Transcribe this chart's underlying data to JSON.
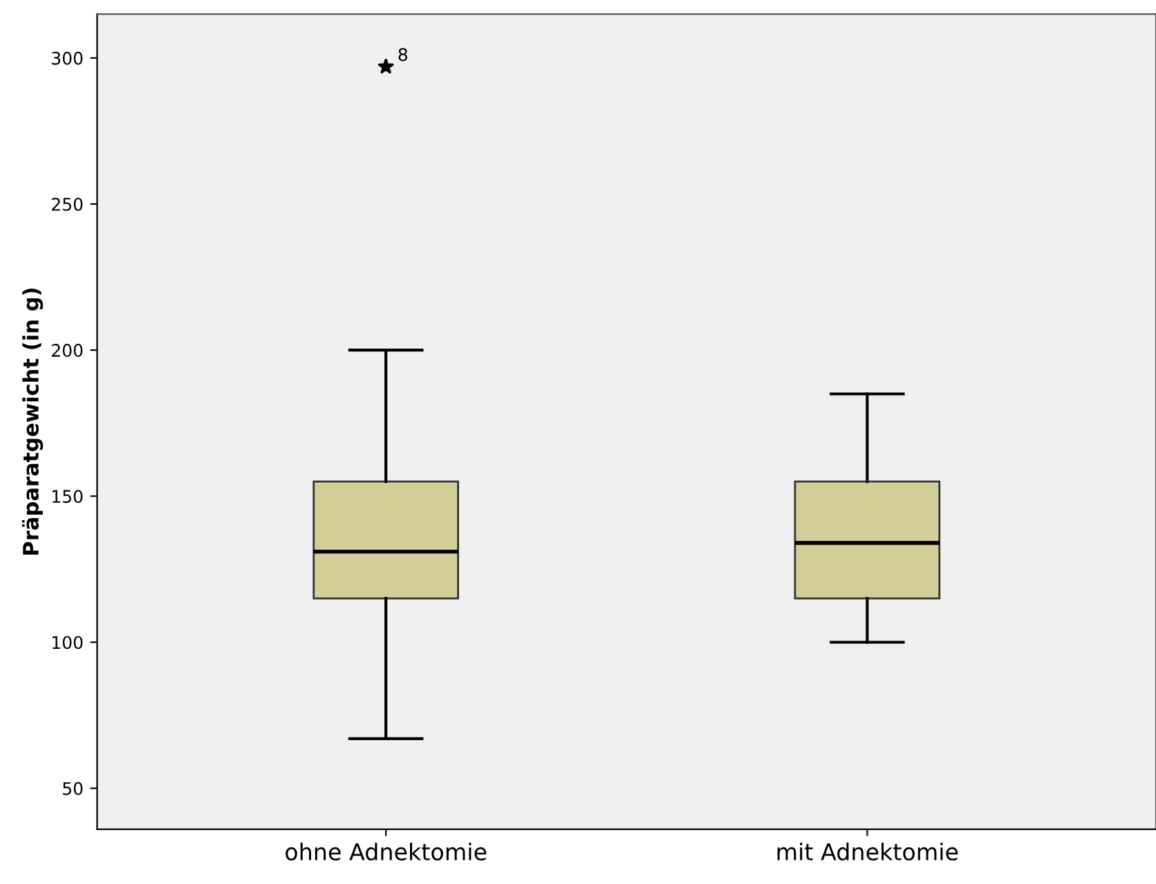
{
  "chart_data": {
    "type": "box",
    "ylabel": "Präparatgewicht (in g)",
    "categories": [
      "ohne Adnektomie",
      "mit Adnektomie"
    ],
    "boxes": [
      {
        "low": 67,
        "q1": 115,
        "median": 131,
        "q3": 155,
        "high": 200,
        "outliers": [
          297
        ]
      },
      {
        "low": 100,
        "q1": 115,
        "median": 134,
        "q3": 155,
        "high": 185
      }
    ],
    "color": "#d3ce98",
    "marker": "star",
    "ylim": [
      36,
      315
    ],
    "yticks": [
      50,
      100,
      150,
      200,
      250,
      300
    ],
    "grid": false,
    "annotations": [
      "8"
    ]
  }
}
